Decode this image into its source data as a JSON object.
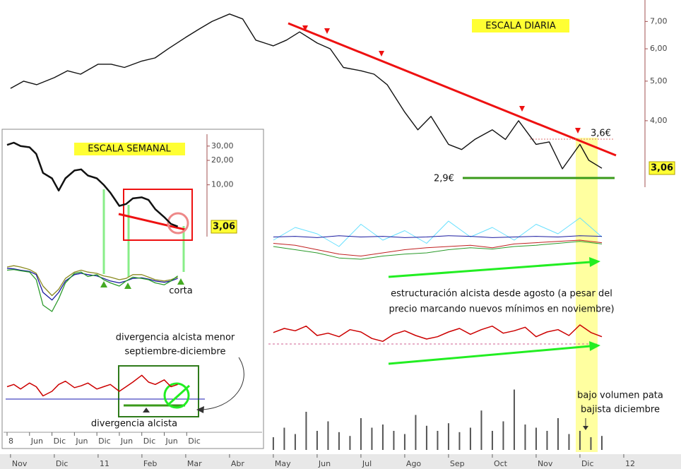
{
  "chart_data": [
    {
      "type": "line",
      "title": "ESCALA DIARIA",
      "log": true,
      "color": "#111111",
      "x": [
        0,
        0.3,
        0.6,
        1,
        1.3,
        1.6,
        2,
        2.3,
        2.6,
        3,
        3.3,
        3.6,
        4,
        4.3,
        4.6,
        5,
        5.3,
        5.6,
        6,
        6.3,
        6.6,
        7,
        7.3,
        7.6,
        8,
        8.3,
        8.6,
        9,
        9.3,
        9.6,
        10,
        10.3,
        10.6,
        11,
        11.3,
        11.6,
        12,
        12.3,
        12.6,
        13,
        13.2,
        13.5
      ],
      "values": [
        4.8,
        5.0,
        4.9,
        5.1,
        5.3,
        5.2,
        5.5,
        5.5,
        5.4,
        5.6,
        5.7,
        6.0,
        6.4,
        6.7,
        7.0,
        7.3,
        7.1,
        6.3,
        6.1,
        6.3,
        6.6,
        6.2,
        6.0,
        5.4,
        5.3,
        5.2,
        4.9,
        4.2,
        3.8,
        4.1,
        3.5,
        3.4,
        3.6,
        3.8,
        3.6,
        4.0,
        3.5,
        3.55,
        3.05,
        3.5,
        3.2,
        3.06
      ],
      "xlim": [
        -0.24,
        14.92
      ],
      "ylim": [
        2.75,
        7.9
      ],
      "xticks": [
        {
          "value": 0,
          "label": "Nov"
        },
        {
          "value": 1,
          "label": "Dic"
        },
        {
          "value": 2,
          "label": "11"
        },
        {
          "value": 3,
          "label": "Feb"
        },
        {
          "value": 4,
          "label": "Mar"
        },
        {
          "value": 5,
          "label": "Abr"
        },
        {
          "value": 6,
          "label": "May"
        },
        {
          "value": 7,
          "label": "Jun"
        },
        {
          "value": 8,
          "label": "Jul"
        },
        {
          "value": 9,
          "label": "Ago"
        },
        {
          "value": 10,
          "label": "Sep"
        },
        {
          "value": 11,
          "label": "Oct"
        },
        {
          "value": 12,
          "label": "Nov"
        },
        {
          "value": 13,
          "label": "Dic"
        },
        {
          "value": 14,
          "label": "12"
        }
      ],
      "yticks": [
        {
          "value": 4,
          "label": "4,00"
        },
        {
          "value": 5,
          "label": "5,00"
        },
        {
          "value": 6,
          "label": "6,00"
        },
        {
          "value": 7,
          "label": "7,00"
        }
      ],
      "annotations": [
        "3,6€",
        "2,9€",
        "3,06"
      ]
    },
    {
      "type": "line",
      "title": "ESCALA SEMANAL",
      "log": true,
      "color": "#111111",
      "x": [
        0,
        0.3,
        0.6,
        1,
        1.3,
        1.6,
        2,
        2.3,
        2.6,
        3,
        3.3,
        3.6,
        4,
        4.3,
        4.6,
        5,
        5.3,
        5.6,
        6,
        6.3,
        6.6,
        7,
        7.3,
        7.6
      ],
      "values": [
        31,
        33,
        30,
        29,
        24,
        14,
        12,
        8.5,
        12,
        15,
        15.5,
        13,
        12,
        10,
        8,
        5.5,
        5.8,
        6.8,
        7.0,
        6.5,
        5.0,
        4.0,
        3.3,
        3.06
      ],
      "xlim": [
        -0.22,
        11.42
      ],
      "ylim": [
        2.3,
        38
      ],
      "xticks": [
        {
          "value": 0,
          "label": "8"
        },
        {
          "value": 1,
          "label": "Jun"
        },
        {
          "value": 2,
          "label": "Dic"
        },
        {
          "value": 3,
          "label": "Jun"
        },
        {
          "value": 4,
          "label": "Dic"
        },
        {
          "value": 5,
          "label": "Jun"
        },
        {
          "value": 6,
          "label": "Dic"
        },
        {
          "value": 7,
          "label": "Jun"
        },
        {
          "value": 8,
          "label": "Dic"
        }
      ],
      "yticks": [
        {
          "value": 10,
          "label": "10,00"
        },
        {
          "value": 20,
          "label": "20,00"
        },
        {
          "value": 30,
          "label": "30,00"
        }
      ],
      "annotations": [
        "3,06",
        "corta",
        "divergencia alcista menor",
        "septiembre-diciembre",
        "divergencia alcista"
      ]
    },
    {
      "type": "line",
      "xlim": [
        -0.24,
        14.92
      ],
      "ylim": [
        0,
        100
      ],
      "x": [
        6,
        6.5,
        7,
        7.5,
        8,
        8.5,
        9,
        9.5,
        10,
        10.5,
        11,
        11.5,
        12,
        12.5,
        13,
        13.5
      ],
      "series": [
        {
          "color": "#66e0ff",
          "values": [
            50,
            70,
            60,
            40,
            75,
            50,
            65,
            45,
            80,
            55,
            70,
            50,
            75,
            60,
            85,
            55
          ]
        },
        {
          "color": "#1a1aa0",
          "values": [
            55,
            56,
            54,
            57,
            55,
            56,
            54,
            55,
            57,
            56,
            54,
            55,
            56,
            55,
            57,
            56
          ]
        },
        {
          "color": "#2a9a2a",
          "values": [
            40,
            35,
            30,
            22,
            20,
            25,
            28,
            30,
            35,
            38,
            36,
            40,
            42,
            45,
            48,
            44
          ]
        },
        {
          "color": "#c02020",
          "values": [
            45,
            42,
            35,
            28,
            25,
            30,
            35,
            38,
            40,
            42,
            38,
            44,
            46,
            48,
            50,
            46
          ]
        }
      ],
      "annotations": [
        "estructuración alcista desde agosto (a pesar del",
        "precio marcando nuevos mínimos en noviembre)"
      ]
    },
    {
      "type": "line",
      "color": "#cc0000",
      "xlim": [
        -0.24,
        14.92
      ],
      "ylim": [
        20,
        80
      ],
      "x": [
        6,
        6.25,
        6.5,
        6.75,
        7,
        7.25,
        7.5,
        7.75,
        8,
        8.25,
        8.5,
        8.75,
        9,
        9.25,
        9.5,
        9.75,
        10,
        10.25,
        10.5,
        10.75,
        11,
        11.25,
        11.5,
        11.75,
        12,
        12.25,
        12.5,
        12.75,
        13,
        13.25,
        13.5
      ],
      "values": [
        55,
        62,
        58,
        66,
        50,
        54,
        48,
        60,
        56,
        45,
        40,
        52,
        58,
        50,
        44,
        48,
        56,
        62,
        52,
        60,
        66,
        54,
        58,
        64,
        48,
        56,
        60,
        50,
        68,
        55,
        48
      ]
    },
    {
      "type": "bar",
      "color": "#555555",
      "xlim": [
        -0.24,
        14.92
      ],
      "ylim": [
        0,
        100
      ],
      "x": [
        6,
        6.25,
        6.5,
        6.75,
        7,
        7.25,
        7.5,
        7.75,
        8,
        8.25,
        8.5,
        8.75,
        9,
        9.25,
        9.5,
        9.75,
        10,
        10.25,
        10.5,
        10.75,
        11,
        11.25,
        11.5,
        11.75,
        12,
        12.25,
        12.5,
        12.75,
        13,
        13.25,
        13.5
      ],
      "values": [
        20,
        35,
        25,
        60,
        30,
        45,
        28,
        22,
        50,
        35,
        40,
        30,
        25,
        55,
        38,
        30,
        42,
        28,
        35,
        62,
        30,
        45,
        95,
        40,
        35,
        30,
        50,
        25,
        30,
        20,
        22
      ],
      "annotations": [
        "bajo volumen pata",
        "bajista diciembre"
      ]
    },
    {
      "type": "line",
      "xlim": [
        -0.22,
        11.42
      ],
      "ylim": [
        0,
        100
      ],
      "x": [
        0,
        0.3,
        0.6,
        1,
        1.3,
        1.6,
        2,
        2.3,
        2.6,
        3,
        3.3,
        3.6,
        4,
        4.3,
        4.6,
        5,
        5.3,
        5.6,
        6,
        6.3,
        6.6,
        7,
        7.3,
        7.6
      ],
      "series": [
        {
          "color": "#8a8a20",
          "values": [
            80,
            82,
            80,
            76,
            70,
            50,
            35,
            45,
            62,
            72,
            75,
            72,
            70,
            66,
            64,
            60,
            62,
            68,
            68,
            64,
            60,
            58,
            60,
            64
          ]
        },
        {
          "color": "#1a1aa0",
          "values": [
            78,
            77,
            75,
            73,
            68,
            40,
            28,
            40,
            58,
            68,
            70,
            68,
            66,
            62,
            58,
            55,
            58,
            62,
            63,
            61,
            58,
            56,
            58,
            62
          ]
        },
        {
          "color": "#2a9a2a",
          "values": [
            75,
            76,
            74,
            72,
            60,
            20,
            10,
            30,
            55,
            70,
            72,
            65,
            68,
            60,
            55,
            50,
            58,
            64,
            62,
            60,
            55,
            52,
            58,
            66
          ]
        }
      ]
    },
    {
      "type": "line",
      "color": "#cc0000",
      "xlim": [
        -0.22,
        11.42
      ],
      "ylim": [
        0,
        100
      ],
      "x": [
        0,
        0.3,
        0.6,
        1,
        1.3,
        1.6,
        2,
        2.3,
        2.6,
        3,
        3.3,
        3.6,
        4,
        4.3,
        4.6,
        5,
        5.3,
        5.6,
        6,
        6.3,
        6.6,
        7,
        7.3,
        7.6
      ],
      "values": [
        50,
        55,
        45,
        58,
        50,
        30,
        40,
        55,
        62,
        48,
        52,
        58,
        45,
        50,
        55,
        40,
        50,
        60,
        75,
        60,
        55,
        65,
        50,
        55
      ]
    }
  ]
}
